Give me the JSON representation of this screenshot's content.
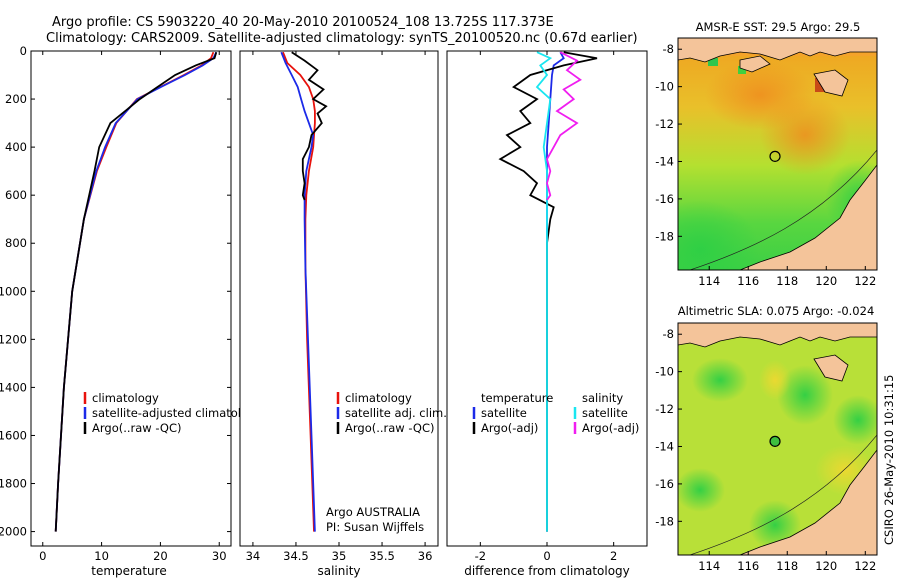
{
  "title_line1": "Argo profile: CS 5903220_40 20-May-2010 20100524_108 13.725S 117.373E",
  "title_line2": "Climatology: CARS2009. Satellite-adjusted climatology: synTS_20100520.nc (0.67d earlier)",
  "footer_stamp": "CSIRO 26-May-2010 10:31:15",
  "colors": {
    "clim": "#e8120c",
    "sat": "#1c2ae8",
    "argo": "#000000",
    "cyan": "#19e6f0",
    "magenta": "#f01ef0",
    "land": "#f4c49a"
  },
  "chart_data": [
    {
      "id": "temperature",
      "type": "line",
      "xlabel": "temperature",
      "xlim": [
        -2,
        32
      ],
      "ylim": [
        0,
        2060
      ],
      "xticks": [
        0,
        10,
        20,
        30
      ],
      "yticks": [
        0,
        200,
        400,
        600,
        800,
        1000,
        1200,
        1400,
        1600,
        1800,
        2000
      ],
      "y_inverted": true,
      "legend": [
        "climatology",
        "satellite-adjusted climatology",
        "Argo(..raw -QC)"
      ],
      "series": [
        {
          "name": "climatology",
          "color": "#e8120c",
          "depth": [
            5,
            30,
            60,
            100,
            150,
            200,
            300,
            400,
            500,
            700,
            1000,
            1400,
            1800,
            2000
          ],
          "values": [
            29.0,
            28.6,
            27.0,
            24.0,
            20.0,
            16.0,
            12.5,
            10.8,
            9.2,
            7.0,
            5.0,
            3.6,
            2.6,
            2.2
          ]
        },
        {
          "name": "satellite-adjusted climatology",
          "color": "#1c2ae8",
          "depth": [
            5,
            30,
            60,
            100,
            150,
            200,
            300,
            400,
            500,
            700,
            1000,
            1400,
            1800,
            2000
          ],
          "values": [
            29.5,
            29.0,
            27.2,
            24.2,
            20.1,
            16.1,
            12.4,
            10.6,
            9.1,
            7.0,
            5.0,
            3.6,
            2.6,
            2.2
          ]
        },
        {
          "name": "Argo(..raw -QC)",
          "color": "#000000",
          "depth": [
            5,
            30,
            60,
            100,
            150,
            200,
            300,
            400,
            500,
            700,
            1000,
            1400,
            1800,
            2000
          ],
          "values": [
            29.5,
            29.2,
            26.0,
            22.5,
            19.5,
            16.5,
            11.5,
            9.6,
            8.8,
            7.0,
            5.0,
            3.6,
            2.6,
            2.2
          ]
        }
      ]
    },
    {
      "id": "salinity",
      "type": "line",
      "xlabel": "salinity",
      "xlim": [
        33.85,
        36.15
      ],
      "ylim": [
        0,
        2060
      ],
      "xticks": [
        34,
        34.5,
        35,
        35.5,
        36
      ],
      "y_inverted": true,
      "legend": [
        "climatology",
        "satellite adj. clim.",
        "Argo(..raw -QC)"
      ],
      "annotation_lines": [
        "Argo AUSTRALIA",
        "PI: Susan Wijffels"
      ],
      "series": [
        {
          "name": "climatology",
          "color": "#e8120c",
          "depth": [
            5,
            50,
            100,
            150,
            200,
            250,
            300,
            400,
            500,
            600,
            700,
            900,
            1200,
            1600,
            2000
          ],
          "values": [
            34.35,
            34.4,
            34.55,
            34.65,
            34.7,
            34.72,
            34.72,
            34.7,
            34.65,
            34.62,
            34.61,
            34.61,
            34.63,
            34.67,
            34.71
          ]
        },
        {
          "name": "satellite adj. clim.",
          "color": "#1c2ae8",
          "depth": [
            5,
            50,
            100,
            150,
            200,
            250,
            300,
            350,
            400,
            500,
            600,
            700,
            900,
            1200,
            1600,
            2000
          ],
          "values": [
            34.33,
            34.38,
            34.45,
            34.52,
            34.56,
            34.6,
            34.65,
            34.7,
            34.68,
            34.62,
            34.6,
            34.6,
            34.61,
            34.64,
            34.68,
            34.72
          ]
        },
        {
          "name": "Argo(..raw -QC)",
          "color": "#000000",
          "depth": [
            5,
            40,
            80,
            120,
            160,
            200,
            230,
            260,
            300,
            350,
            400,
            450,
            500,
            550,
            600,
            620
          ],
          "values": [
            34.45,
            34.6,
            34.75,
            34.65,
            34.82,
            34.7,
            34.85,
            34.75,
            34.8,
            34.68,
            34.65,
            34.58,
            34.58,
            34.6,
            34.58,
            34.6
          ]
        }
      ]
    },
    {
      "id": "difference",
      "type": "line",
      "xlabel": "difference from climatology",
      "xlim": [
        -3,
        3
      ],
      "ylim": [
        0,
        2060
      ],
      "xticks": [
        -2,
        0,
        2
      ],
      "y_inverted": true,
      "legend_left_header": "temperature",
      "legend_right_header": "salinity",
      "legend_left": [
        "satellite",
        "Argo(-adj)"
      ],
      "legend_right": [
        "satellite",
        "Argo(-adj)"
      ],
      "series": [
        {
          "name": "temperature satellite",
          "color": "#1c2ae8",
          "depth": [
            5,
            30,
            60,
            100,
            200,
            300,
            400,
            600,
            1000,
            2000
          ],
          "values": [
            0.4,
            0.5,
            0.2,
            0.15,
            0.1,
            0.05,
            0.0,
            0.0,
            0.0,
            0.0
          ]
        },
        {
          "name": "temperature Argo(-adj)",
          "color": "#000000",
          "depth": [
            5,
            30,
            60,
            100,
            150,
            200,
            250,
            300,
            350,
            400,
            450,
            500,
            550,
            600,
            650,
            700,
            800,
            1000,
            1400,
            2000
          ],
          "values": [
            0.5,
            1.5,
            0.5,
            -0.5,
            -1.0,
            -0.3,
            -0.8,
            -0.5,
            -1.2,
            -0.8,
            -1.4,
            -0.7,
            -0.3,
            -0.5,
            0.2,
            0.1,
            0.0,
            0.0,
            0.0,
            0.0
          ]
        },
        {
          "name": "salinity satellite",
          "color": "#19e6f0",
          "depth": [
            5,
            30,
            60,
            100,
            150,
            200,
            300,
            400,
            500,
            700,
            1000,
            1500,
            2000
          ],
          "values": [
            -0.3,
            0.1,
            -0.2,
            0.0,
            -0.3,
            0.1,
            0.0,
            -0.1,
            0.0,
            0.0,
            0.0,
            0.0,
            0.0
          ]
        },
        {
          "name": "salinity Argo(-adj)",
          "color": "#f01ef0",
          "depth": [
            5,
            40,
            80,
            120,
            160,
            200,
            250,
            300,
            350,
            400,
            450,
            500,
            550,
            600,
            620
          ],
          "values": [
            0.4,
            0.9,
            0.6,
            1.0,
            0.5,
            0.8,
            0.3,
            0.9,
            0.4,
            0.2,
            0.0,
            0.1,
            0.0,
            0.1,
            0.0
          ]
        }
      ]
    },
    {
      "id": "sst_map",
      "type": "heatmap",
      "title": "AMSR-E SST: 29.5 Argo: 29.5",
      "xticks": [
        114,
        116,
        118,
        120,
        122
      ],
      "yticks": [
        -8,
        -10,
        -12,
        -14,
        -16,
        -18
      ],
      "xlim": [
        112.4,
        122.6
      ],
      "ylim": [
        -19.8,
        -7.4
      ],
      "marker_lon": 117.373,
      "marker_lat": -13.725
    },
    {
      "id": "sla_map",
      "type": "heatmap",
      "title": "Altimetric SLA: 0.075 Argo: -0.024",
      "xticks": [
        114,
        116,
        118,
        120,
        122
      ],
      "yticks": [
        -8,
        -10,
        -12,
        -14,
        -16,
        -18
      ],
      "xlim": [
        112.4,
        122.6
      ],
      "ylim": [
        -19.8,
        -7.4
      ],
      "marker_lon": 117.373,
      "marker_lat": -13.725
    }
  ]
}
